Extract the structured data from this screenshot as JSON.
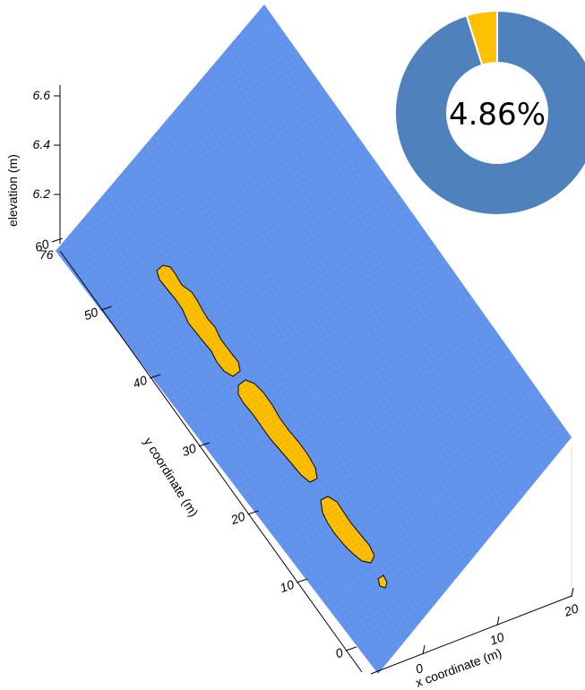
{
  "chart_data": [
    {
      "type": "surface",
      "title": "",
      "xlabel": "x coordinate (m)",
      "ylabel": "y coordinate (m)",
      "zlabel": "elevation (m)",
      "x_ticks": [
        0,
        10,
        20
      ],
      "y_ticks": [
        0,
        10,
        20,
        30,
        40,
        50,
        60
      ],
      "z_ticks": [
        6.2,
        6.4,
        6.6
      ],
      "z_overlap_tick": "76",
      "surface_color": "#6495ED",
      "highlight_color": "#FFC000",
      "highlighted_regions": [
        {
          "name": "",
          "y_range": [
            47,
            66
          ],
          "x_range": [
            0,
            4
          ]
        },
        {
          "name": "",
          "y_range": [
            30,
            46
          ],
          "x_range": [
            3,
            8
          ]
        },
        {
          "name": "",
          "y_range": [
            15,
            26
          ],
          "x_range": [
            7,
            11
          ]
        },
        {
          "name": "",
          "y_range": [
            10,
            11
          ],
          "x_range": [
            11,
            12
          ]
        }
      ]
    },
    {
      "type": "pie",
      "donut": true,
      "center_label": "4.86%",
      "slices": [
        {
          "label": "",
          "value": 4.86,
          "color": "#FFC000"
        },
        {
          "label": "",
          "value": 95.14,
          "color": "#4F81BD"
        }
      ]
    }
  ]
}
